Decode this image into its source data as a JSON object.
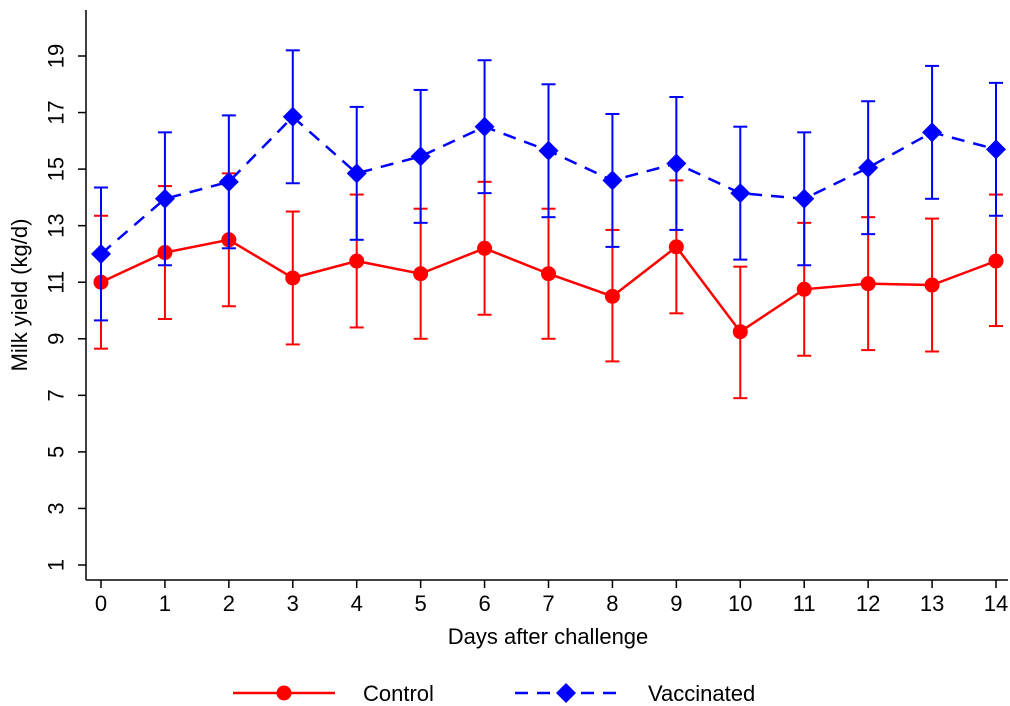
{
  "chart_data": {
    "type": "line",
    "title": "",
    "xlabel": "Days after challenge",
    "ylabel": "Milk yield (kg/d)",
    "x": [
      0,
      1,
      2,
      3,
      4,
      5,
      6,
      7,
      8,
      9,
      10,
      11,
      12,
      13,
      14
    ],
    "xlim": [
      -0.2,
      14.25
    ],
    "xticks": [
      "0",
      "1",
      "2",
      "3",
      "4",
      "5",
      "6",
      "7",
      "8",
      "9",
      "10",
      "11",
      "12",
      "13",
      "14"
    ],
    "ylim": [
      0.5,
      20.5
    ],
    "yticks": [
      "1",
      "3",
      "5",
      "7",
      "9",
      "11",
      "13",
      "15",
      "17",
      "19"
    ],
    "grid": false,
    "legend_position": "bottom",
    "series": [
      {
        "name": "Control",
        "color": "#ff0000",
        "line_style": "solid",
        "marker": "circle",
        "values": [
          11.0,
          12.05,
          12.5,
          11.15,
          11.75,
          11.3,
          12.2,
          11.3,
          10.5,
          12.25,
          9.25,
          10.75,
          10.95,
          10.9,
          11.75
        ],
        "err_low": [
          8.65,
          9.7,
          10.15,
          8.8,
          9.4,
          9.0,
          9.85,
          9.0,
          8.2,
          9.9,
          6.9,
          8.4,
          8.6,
          8.55,
          9.45
        ],
        "err_high": [
          13.35,
          14.4,
          14.85,
          13.5,
          14.1,
          13.6,
          14.55,
          13.6,
          12.85,
          14.6,
          11.55,
          13.1,
          13.3,
          13.25,
          14.1
        ]
      },
      {
        "name": "Vaccinated",
        "color": "#0000ff",
        "line_style": "dashed",
        "marker": "diamond",
        "values": [
          12.0,
          13.95,
          14.55,
          16.85,
          14.85,
          15.45,
          16.5,
          15.65,
          14.6,
          15.2,
          14.15,
          13.95,
          15.05,
          16.3,
          15.7
        ],
        "err_low": [
          9.65,
          11.6,
          12.2,
          14.5,
          12.5,
          13.1,
          14.15,
          13.3,
          12.25,
          12.85,
          11.8,
          11.6,
          12.7,
          13.95,
          13.35
        ],
        "err_high": [
          14.35,
          16.3,
          16.9,
          19.2,
          17.2,
          17.8,
          18.85,
          18.0,
          16.95,
          17.55,
          16.5,
          16.3,
          17.4,
          18.65,
          18.05
        ]
      }
    ]
  }
}
